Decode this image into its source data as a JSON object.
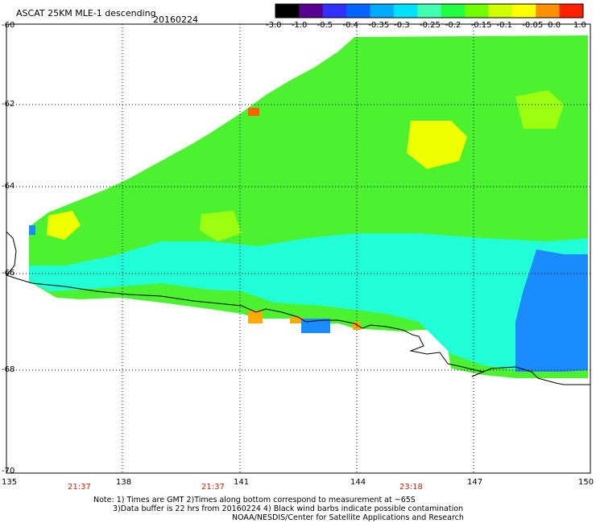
{
  "header": {
    "title": "ASCAT 25KM MLE-1 descending",
    "date": "20160224"
  },
  "colorbar": {
    "labels": [
      "-3.0",
      "-1.0",
      "-0.5",
      "-0.4",
      "-0.35",
      "-0.3",
      "-0.25",
      "-0.2",
      "-0.15",
      "-0.1",
      "-0.05",
      "0.0",
      "1.0"
    ],
    "colors": [
      "#000000",
      "#5a0090",
      "#3030ff",
      "#0066ff",
      "#00aaff",
      "#00e0ff",
      "#40ffb0",
      "#20ff40",
      "#70ff00",
      "#d0ff00",
      "#ffff00",
      "#ff9000",
      "#ff2000"
    ]
  },
  "axes": {
    "lat_labels": [
      "-60",
      "-62",
      "-64",
      "-66",
      "-68",
      "-70"
    ],
    "lon_labels": [
      "135",
      "138",
      "141",
      "144",
      "147",
      "150"
    ],
    "time_labels": [
      "21:37",
      "21:37",
      "23:18"
    ]
  },
  "notes": {
    "line1": "Note: 1) Times are GMT 2)Times along bottom correspond to measurement at ~65S",
    "line2": "3)Data buffer is 22 hrs from 20160224 4) Black wind barbs indicate possible contamination",
    "line3": "NOAA/NESDIS/Center for Satellite Applications and Research"
  },
  "palette": {
    "green": "#4cf230",
    "lime": "#9cff10",
    "yellow": "#f0ff00",
    "cyan": "#20ffd8",
    "blue": "#1a8cff",
    "orange": "#ffaa00",
    "red": "#ff6000"
  }
}
